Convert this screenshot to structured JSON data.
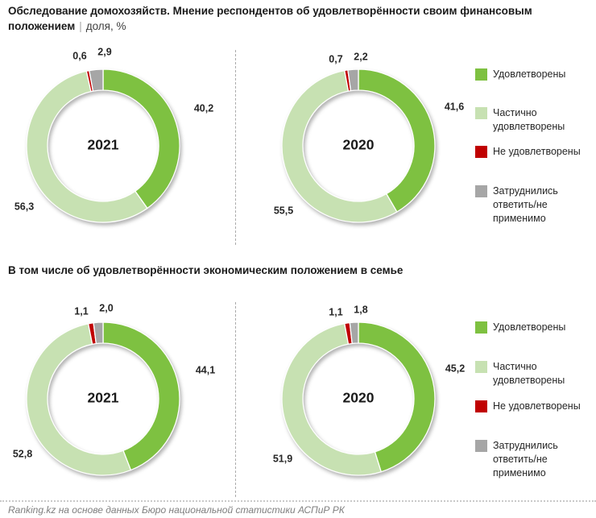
{
  "header": {
    "title_main": "Обследование домохозяйств. Мнение респондентов об удовлетворённости своим финансовым положением",
    "separator": "|",
    "unit": "доля, %"
  },
  "section2": {
    "title": "В том числе об удовлетворённости экономическим положением в семье"
  },
  "footer": {
    "credit": "Ranking.kz на основе данных Бюро национальной статистики АСПиР РК"
  },
  "colors": {
    "satisfied": "#7EC141",
    "partially": "#C7E1B2",
    "not_satisfied": "#C00000",
    "undecided": "#A6A6A6"
  },
  "legend": {
    "items": [
      {
        "key": "satisfied",
        "label": "Удовлетворены"
      },
      {
        "key": "partially",
        "label": "Частично удовлетворены"
      },
      {
        "key": "not_satisfied",
        "label": "Не удовлетворены"
      },
      {
        "key": "undecided",
        "label": "Затруднились ответить/не применимо"
      }
    ]
  },
  "chart_data": [
    {
      "type": "pie",
      "variant": "donut",
      "center_label": "2021",
      "categories": [
        "Удовлетворены",
        "Частично удовлетворены",
        "Не удовлетворены",
        "Затруднились ответить/не применимо"
      ],
      "color_keys": [
        "satisfied",
        "partially",
        "not_satisfied",
        "undecided"
      ],
      "values": [
        40.2,
        56.3,
        0.6,
        2.9
      ],
      "value_labels": [
        "40,2",
        "56,3",
        "0,6",
        "2,9"
      ],
      "label_pos": [
        [
          253,
          80
        ],
        [
          30,
          202
        ],
        [
          99,
          15
        ],
        [
          130,
          10
        ]
      ]
    },
    {
      "type": "pie",
      "variant": "donut",
      "center_label": "2020",
      "categories": [
        "Удовлетворены",
        "Частично удовлетворены",
        "Не удовлетворены",
        "Затруднились ответить/не применимо"
      ],
      "color_keys": [
        "satisfied",
        "partially",
        "not_satisfied",
        "undecided"
      ],
      "values": [
        41.6,
        55.5,
        0.7,
        2.2
      ],
      "value_labels": [
        "41,6",
        "55,5",
        "0,7",
        "2,2"
      ],
      "label_pos": [
        [
          247,
          78
        ],
        [
          35,
          207
        ],
        [
          100,
          19
        ],
        [
          131,
          16
        ]
      ]
    },
    {
      "type": "pie",
      "variant": "donut",
      "center_label": "2021",
      "categories": [
        "Удовлетворены",
        "Частично удовлетворены",
        "Не удовлетворены",
        "Затруднились ответить/не применимо"
      ],
      "color_keys": [
        "satisfied",
        "partially",
        "not_satisfied",
        "undecided"
      ],
      "values": [
        44.1,
        52.8,
        1.1,
        2.0
      ],
      "value_labels": [
        "44,1",
        "52,8",
        "1,1",
        "2,0"
      ],
      "label_pos": [
        [
          255,
          91
        ],
        [
          28,
          195
        ],
        [
          101,
          18
        ],
        [
          132,
          14
        ]
      ]
    },
    {
      "type": "pie",
      "variant": "donut",
      "center_label": "2020",
      "categories": [
        "Удовлетворены",
        "Частично удовлетворены",
        "Не удовлетворены",
        "Затруднились ответить/не применимо"
      ],
      "color_keys": [
        "satisfied",
        "partially",
        "not_satisfied",
        "undecided"
      ],
      "values": [
        45.2,
        51.9,
        1.1,
        1.8
      ],
      "value_labels": [
        "45,2",
        "51,9",
        "1,1",
        "1,8"
      ],
      "label_pos": [
        [
          248,
          89
        ],
        [
          34,
          201
        ],
        [
          100,
          19
        ],
        [
          131,
          16
        ]
      ]
    }
  ]
}
